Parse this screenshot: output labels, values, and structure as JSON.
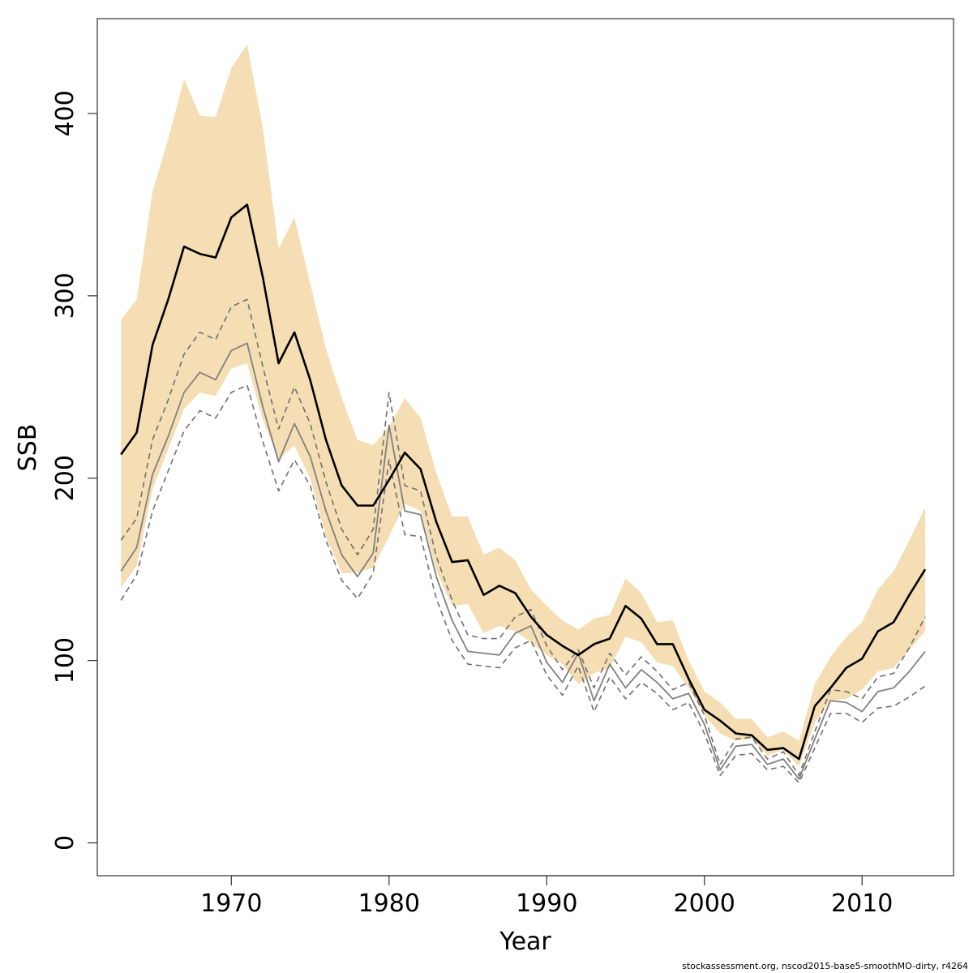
{
  "chart_data": {
    "type": "line",
    "xlabel": "Year",
    "ylabel": "SSB",
    "xlim": [
      1961.5,
      2015.8
    ],
    "ylim": [
      -18,
      452
    ],
    "x_ticks": [
      1970,
      1980,
      1990,
      2000,
      2010
    ],
    "y_ticks": [
      0,
      100,
      200,
      300,
      400
    ],
    "band_color": "#f5deb3",
    "x": [
      1963,
      1964,
      1965,
      1966,
      1967,
      1968,
      1969,
      1970,
      1971,
      1972,
      1973,
      1974,
      1975,
      1976,
      1977,
      1978,
      1979,
      1980,
      1981,
      1982,
      1983,
      1984,
      1985,
      1986,
      1987,
      1988,
      1989,
      1990,
      1991,
      1992,
      1993,
      1994,
      1995,
      1996,
      1997,
      1998,
      1999,
      2000,
      2001,
      2002,
      2003,
      2004,
      2005,
      2006,
      2007,
      2008,
      2009,
      2010,
      2011,
      2012,
      2013,
      2014
    ],
    "confidence_band": {
      "upper": [
        287,
        298,
        357,
        386,
        419,
        399,
        398,
        425,
        438,
        392,
        326,
        343,
        307,
        271,
        244,
        221,
        218,
        228,
        244,
        233,
        203,
        179,
        179,
        158,
        162,
        155,
        139,
        130,
        122,
        117,
        123,
        125,
        145,
        137,
        121,
        122,
        100,
        83,
        77,
        68,
        68,
        58,
        61,
        56,
        87,
        102,
        113,
        121,
        139,
        149,
        166,
        184
      ],
      "lower": [
        140,
        152,
        194,
        216,
        238,
        247,
        245,
        260,
        263,
        232,
        210,
        218,
        200,
        168,
        148,
        148,
        151,
        168,
        186,
        182,
        149,
        130,
        131,
        115,
        119,
        116,
        110,
        103,
        98,
        87,
        93,
        96,
        113,
        110,
        99,
        97,
        85,
        70,
        60,
        56,
        57,
        48,
        51,
        42,
        66,
        78,
        79,
        84,
        94,
        96,
        106,
        116
      ]
    },
    "series": [
      {
        "values": [
          213,
          225,
          273,
          298,
          327,
          323,
          321,
          343,
          350,
          310,
          263,
          280,
          254,
          221,
          196,
          185,
          185,
          199,
          214,
          205,
          176,
          154,
          155,
          136,
          141,
          137,
          124,
          114,
          108,
          103,
          109,
          112,
          130,
          123,
          109,
          109,
          90,
          73,
          67,
          60,
          59,
          51,
          52,
          46,
          75,
          85,
          96,
          101,
          116,
          121,
          136,
          150
        ],
        "color": "#000000",
        "style": "solid",
        "width": 2.6
      },
      {
        "values": [
          149,
          162,
          202,
          223,
          247,
          258,
          254,
          270,
          274,
          239,
          209,
          230,
          212,
          182,
          158,
          146,
          159,
          229,
          182,
          180,
          146,
          122,
          105,
          104,
          103,
          115,
          119,
          99,
          88,
          104,
          78,
          98,
          85,
          95,
          88,
          79,
          82,
          65,
          40,
          53,
          54,
          43,
          46,
          35,
          57,
          78,
          77,
          72,
          83,
          85,
          94,
          105
        ],
        "color": "#808080",
        "style": "solid",
        "width": 1.8
      },
      {
        "values": [
          166,
          178,
          221,
          243,
          268,
          280,
          276,
          294,
          298,
          261,
          227,
          250,
          230,
          198,
          172,
          158,
          172,
          247,
          196,
          193,
          157,
          133,
          114,
          112,
          112,
          124,
          128,
          108,
          95,
          106,
          85,
          104,
          92,
          102,
          94,
          84,
          88,
          70,
          43,
          57,
          58,
          46,
          50,
          37,
          61,
          84,
          83,
          79,
          91,
          93,
          107,
          124
        ],
        "color": "#707070",
        "style": "dashed",
        "width": 1.6
      },
      {
        "values": [
          133,
          147,
          182,
          204,
          226,
          237,
          233,
          247,
          251,
          220,
          193,
          210,
          196,
          166,
          144,
          134,
          148,
          210,
          169,
          168,
          134,
          111,
          98,
          97,
          96,
          107,
          111,
          92,
          81,
          97,
          72,
          91,
          79,
          88,
          82,
          73,
          77,
          60,
          37,
          48,
          49,
          40,
          42,
          33,
          52,
          71,
          71,
          66,
          74,
          75,
          80,
          86
        ],
        "color": "#707070",
        "style": "dashed",
        "width": 1.6
      }
    ]
  },
  "footer": "stockassessment.org, nscod2015-base5-smoothMO-dirty, r4264"
}
